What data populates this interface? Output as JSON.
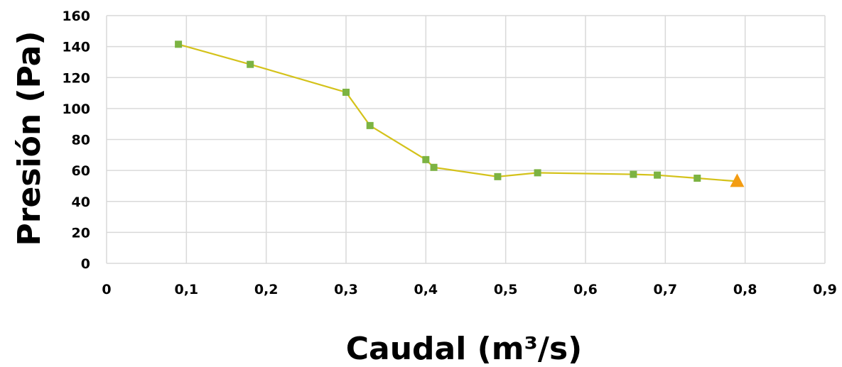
{
  "chart_data": {
    "type": "line",
    "title": "",
    "xlabel": "Caudal (m³/s)",
    "ylabel": "Presión (Pa)",
    "xlim": [
      0,
      0.9
    ],
    "ylim": [
      0,
      160
    ],
    "x_ticks": [
      0,
      0.1,
      0.2,
      0.3,
      0.4,
      0.5,
      0.6,
      0.7,
      0.8,
      0.9
    ],
    "x_tick_labels": [
      "0",
      "0,1",
      "0,2",
      "0,3",
      "0,4",
      "0,5",
      "0,6",
      "0,7",
      "0,8",
      "0,9"
    ],
    "y_ticks": [
      0,
      20,
      40,
      60,
      80,
      100,
      120,
      140,
      160
    ],
    "y_tick_labels": [
      "0",
      "20",
      "40",
      "60",
      "80",
      "100",
      "120",
      "140",
      "160"
    ],
    "grid": true,
    "legend": "none",
    "series": [
      {
        "x": [
          0.09,
          0.18,
          0.3,
          0.33,
          0.4,
          0.41,
          0.49,
          0.54,
          0.66,
          0.69,
          0.74,
          0.79
        ],
        "y": [
          141.5,
          128.5,
          110.5,
          89,
          67,
          62,
          56,
          58.5,
          57.5,
          57,
          55,
          53
        ],
        "marker": "square",
        "marker_color": "#7cb342",
        "line_color": "#d4c21a",
        "last_marker": "triangle",
        "last_marker_color": "#f39c12"
      }
    ]
  }
}
